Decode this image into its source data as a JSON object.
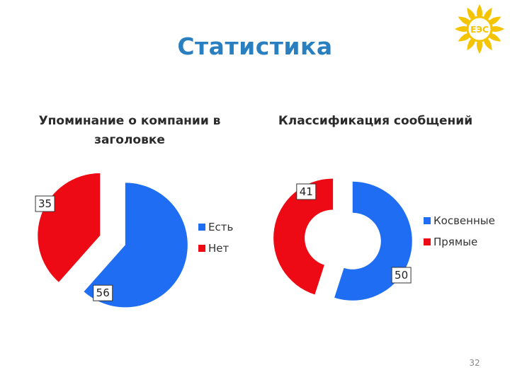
{
  "page": {
    "title": "Статистика",
    "page_number": "32"
  },
  "logo": {
    "icon": "sun-logo-icon",
    "text": "ЕЭС",
    "color": "#f5c400"
  },
  "chart_data": [
    {
      "type": "pie",
      "title": "Упоминание о компании в заголовке",
      "categories": [
        "Есть",
        "Нет"
      ],
      "values": [
        56,
        35
      ],
      "colors": [
        "#1e6df2",
        "#ee0a14"
      ],
      "legend": "right"
    },
    {
      "type": "donut",
      "title": "Классификация сообщений",
      "categories": [
        "Косвенные",
        "Прямые"
      ],
      "values": [
        50,
        41
      ],
      "colors": [
        "#1e6df2",
        "#ee0a14"
      ],
      "legend": "right"
    }
  ]
}
